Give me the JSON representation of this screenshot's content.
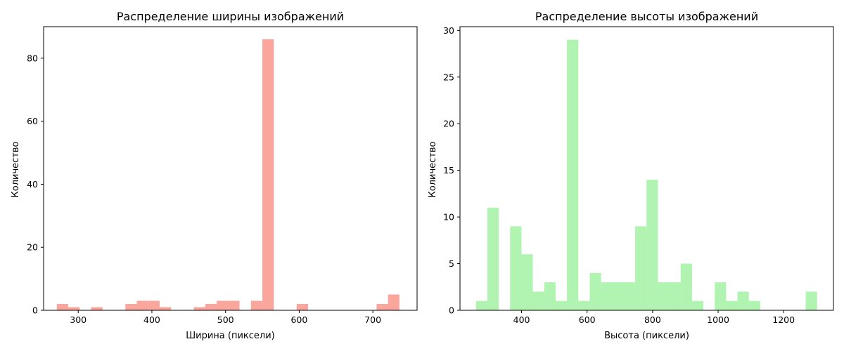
{
  "chart_data": [
    {
      "type": "bar",
      "title": "Распределение ширины изображений",
      "xlabel": "Ширина (пиксели)",
      "ylabel": "Количество",
      "xlim": [
        253,
        760
      ],
      "ylim": [
        0,
        90
      ],
      "xticks": [
        300,
        400,
        500,
        600,
        700
      ],
      "yticks": [
        0,
        20,
        40,
        60,
        80
      ],
      "color": "#fa8072",
      "opacity": 0.7,
      "bin_width": 15.5,
      "bins": [
        {
          "x0": 271,
          "value": 2
        },
        {
          "x0": 286.5,
          "value": 1
        },
        {
          "x0": 317.5,
          "value": 1
        },
        {
          "x0": 364,
          "value": 2
        },
        {
          "x0": 379.5,
          "value": 3
        },
        {
          "x0": 395,
          "value": 3
        },
        {
          "x0": 410.5,
          "value": 1
        },
        {
          "x0": 457,
          "value": 1
        },
        {
          "x0": 472.5,
          "value": 2
        },
        {
          "x0": 488,
          "value": 3
        },
        {
          "x0": 503.5,
          "value": 3
        },
        {
          "x0": 534.5,
          "value": 3
        },
        {
          "x0": 550,
          "value": 86
        },
        {
          "x0": 596.5,
          "value": 2
        },
        {
          "x0": 705,
          "value": 2
        },
        {
          "x0": 720.5,
          "value": 5
        }
      ],
      "grid": false,
      "legend": "none"
    },
    {
      "type": "bar",
      "title": "Распределение высоты изображений",
      "xlabel": "Высота (пиксели)",
      "ylabel": "Количество",
      "xlim": [
        212,
        1352
      ],
      "ylim": [
        0,
        30.4
      ],
      "xticks": [
        400,
        600,
        800,
        1000,
        1200
      ],
      "yticks": [
        0,
        5,
        10,
        15,
        20,
        25,
        30
      ],
      "color": "#90ee90",
      "opacity": 0.7,
      "bin_width": 34.7,
      "bins": [
        {
          "x0": 261,
          "value": 1
        },
        {
          "x0": 295.7,
          "value": 11
        },
        {
          "x0": 365.1,
          "value": 9
        },
        {
          "x0": 399.8,
          "value": 6
        },
        {
          "x0": 434.5,
          "value": 2
        },
        {
          "x0": 469.2,
          "value": 3
        },
        {
          "x0": 503.9,
          "value": 1
        },
        {
          "x0": 538.6,
          "value": 29
        },
        {
          "x0": 573.3,
          "value": 1
        },
        {
          "x0": 608,
          "value": 4
        },
        {
          "x0": 642.7,
          "value": 3
        },
        {
          "x0": 677.4,
          "value": 3
        },
        {
          "x0": 712.1,
          "value": 3
        },
        {
          "x0": 746.8,
          "value": 9
        },
        {
          "x0": 781.5,
          "value": 14
        },
        {
          "x0": 816.2,
          "value": 3
        },
        {
          "x0": 850.9,
          "value": 3
        },
        {
          "x0": 885.6,
          "value": 5
        },
        {
          "x0": 920.3,
          "value": 1
        },
        {
          "x0": 989.7,
          "value": 3
        },
        {
          "x0": 1024.4,
          "value": 1
        },
        {
          "x0": 1059.1,
          "value": 2
        },
        {
          "x0": 1093.8,
          "value": 1
        },
        {
          "x0": 1267.3,
          "value": 2
        }
      ],
      "grid": false,
      "legend": "none"
    }
  ]
}
